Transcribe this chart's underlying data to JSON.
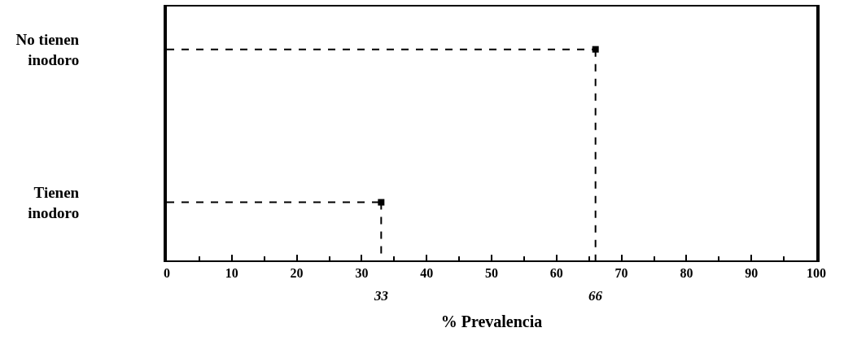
{
  "chart_data": {
    "type": "lollipop",
    "marker": "square",
    "orientation": "horizontal",
    "categories": [
      "No tienen inodoro",
      "Tienen inodoro"
    ],
    "values": [
      66,
      33
    ],
    "ref_lines": [
      {
        "axis": "x",
        "value": 66,
        "label": "66",
        "color": "#000000",
        "line_style": "dashed"
      },
      {
        "axis": "x",
        "value": 33,
        "label": "33",
        "color": "#000000",
        "line_style": "dashed"
      }
    ],
    "color": "#000000",
    "line_style": "dashed",
    "xlim": [
      0,
      100
    ],
    "xticks": [
      0,
      10,
      20,
      30,
      40,
      50,
      60,
      70,
      80,
      90,
      100
    ],
    "xlabel": "% Prevalencia"
  }
}
